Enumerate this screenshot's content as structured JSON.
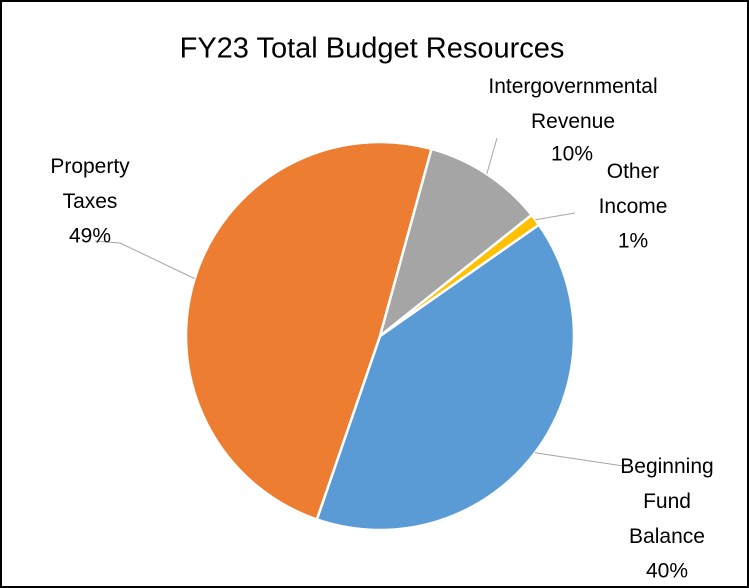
{
  "chart_data": {
    "type": "pie",
    "title": "FY23 Total Budget Resources",
    "categories": [
      "Beginning Fund Balance",
      "Property Taxes",
      "Intergovernmental Revenue",
      "Other Income"
    ],
    "values": [
      40,
      49,
      10,
      1
    ],
    "value_labels": [
      "40%",
      "49%",
      "10%",
      "1%"
    ],
    "colors": [
      "#5b9bd5",
      "#ed7d31",
      "#a5a5a5",
      "#ffc000"
    ]
  }
}
